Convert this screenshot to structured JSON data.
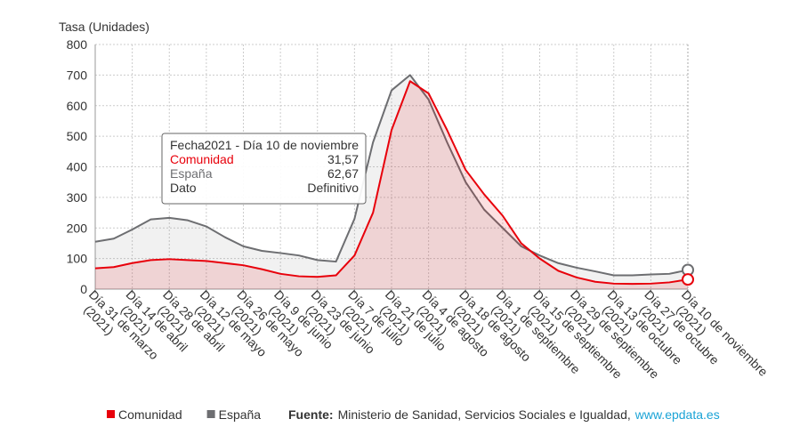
{
  "chart_data": {
    "type": "area",
    "y_axis_label": "Tasa (Unidades)",
    "categories": [
      "Día 31 de marzo (2021)",
      null,
      "Día 14 de abril (2021)",
      null,
      "Día 28 de abril (2021)",
      null,
      "Día 12 de mayo (2021)",
      null,
      "Día 26 de mayo (2021)",
      null,
      "Día 9 de junio (2021)",
      null,
      "Día 23 de junio (2021)",
      null,
      "Día 7 de julio (2021)",
      null,
      "Día 21 de julio (2021)",
      null,
      "Día 4 de agosto (2021)",
      null,
      "Día 18 de agosto (2021)",
      null,
      "Día 1 de septiembre (2021)",
      null,
      "Día 15 de septiembre (2021)",
      null,
      "Día 29 de septiembre (2021)",
      null,
      "Día 13 de octubre (2021)",
      null,
      "Día 27 de octubre (2021)",
      null,
      "Día 10 de noviembre (2021)"
    ],
    "series": [
      {
        "name": "Comunidad",
        "color": "#e8000b",
        "fill": "rgba(232,0,11,0.12)",
        "values": [
          68,
          72,
          85,
          95,
          98,
          95,
          92,
          85,
          78,
          65,
          50,
          42,
          40,
          45,
          110,
          250,
          520,
          680,
          640,
          520,
          390,
          310,
          240,
          150,
          100,
          60,
          38,
          24,
          18,
          17,
          18,
          22,
          31.57
        ]
      },
      {
        "name": "España",
        "color": "#6d6e71",
        "fill": "rgba(120,120,120,0.1)",
        "values": [
          155,
          165,
          195,
          228,
          233,
          225,
          205,
          170,
          140,
          125,
          118,
          110,
          95,
          90,
          230,
          480,
          650,
          700,
          620,
          480,
          350,
          260,
          200,
          140,
          110,
          85,
          70,
          58,
          45,
          45,
          48,
          50,
          62.67
        ]
      }
    ],
    "ylim": [
      0,
      800
    ],
    "yticks": [
      0,
      100,
      200,
      300,
      400,
      500,
      600,
      700,
      800
    ],
    "grid": true,
    "tooltip": {
      "rows": [
        [
          "Fecha",
          "2021 - Día 10 de noviembre"
        ],
        [
          "Comunidad",
          "31,57"
        ],
        [
          "España",
          "62,67"
        ],
        [
          "Dato",
          "Definitivo"
        ]
      ]
    },
    "source": {
      "label": "Fuente:",
      "text": "Ministerio de Sanidad, Servicios Sociales e Igualdad,",
      "link": "www.epdata.es"
    }
  }
}
